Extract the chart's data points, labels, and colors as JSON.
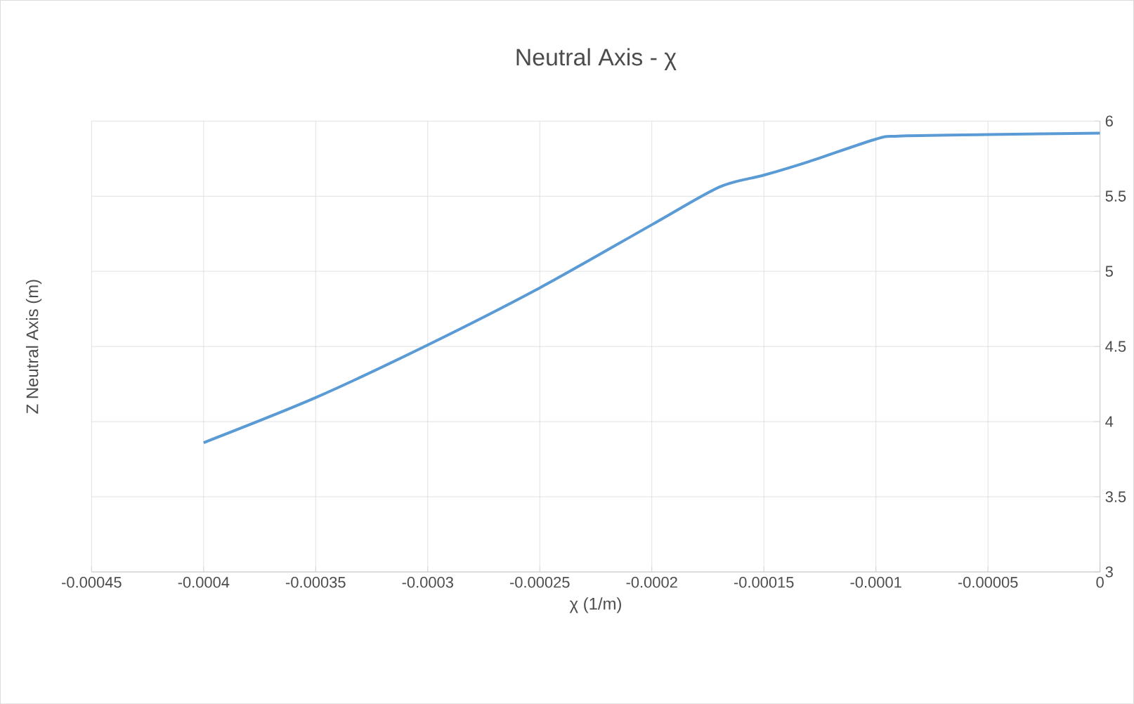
{
  "chart_data": {
    "type": "line",
    "title": "Neutral Axis - χ",
    "xlabel": "χ (1/m)",
    "ylabel": "Z Neutral Axis (m)",
    "x": [
      -0.0004,
      -0.00035,
      -0.0003,
      -0.00025,
      -0.0002,
      -0.00017,
      -0.00015,
      -0.00013,
      -0.0001,
      -9e-05,
      -5e-05,
      0
    ],
    "series": [
      {
        "color": "#5b9bd5",
        "values": [
          3.86,
          4.16,
          4.51,
          4.89,
          5.31,
          5.56,
          5.64,
          5.73,
          5.88,
          5.9,
          5.91,
          5.92
        ]
      }
    ],
    "xlim": [
      -0.00045,
      0
    ],
    "ylim": [
      3,
      6
    ],
    "xticks": [
      -0.00045,
      -0.0004,
      -0.00035,
      -0.0003,
      -0.00025,
      -0.0002,
      -0.00015,
      -0.0001,
      {
        "value": -5e-05,
        "label": "-0.00005"
      },
      0
    ],
    "yticks": [
      3,
      3.5,
      4,
      4.5,
      5,
      5.5,
      6
    ],
    "grid": true
  }
}
